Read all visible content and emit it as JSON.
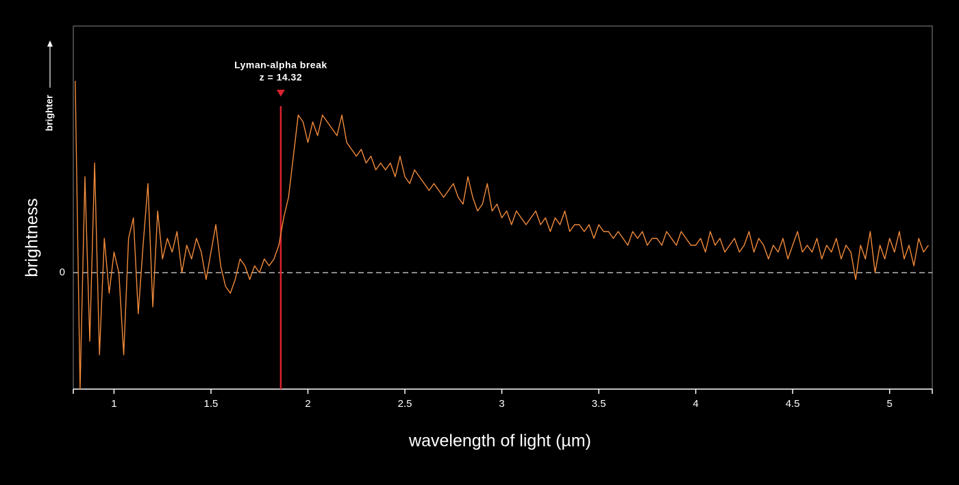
{
  "chart_data": {
    "type": "line",
    "xlabel": "wavelength of light (µm)",
    "ylabel": "brightness",
    "ylabel_note": "brighter",
    "annotation": {
      "x": 1.86,
      "lines": [
        "Lyman-alpha break",
        "z = 14.32"
      ],
      "color": "#d8232f"
    },
    "color": "#f28b3c",
    "xlim": [
      0.79,
      5.22
    ],
    "xticks": [
      1,
      1.5,
      2,
      2.5,
      3,
      3.5,
      4,
      4.5,
      5
    ],
    "ylim": [
      -17,
      36
    ],
    "yticks": [
      0
    ],
    "grid": true,
    "x": [
      0.8,
      0.825,
      0.85,
      0.875,
      0.9,
      0.925,
      0.95,
      0.975,
      1,
      1.025,
      1.05,
      1.075,
      1.1,
      1.125,
      1.15,
      1.175,
      1.2,
      1.225,
      1.25,
      1.275,
      1.3,
      1.325,
      1.35,
      1.375,
      1.4,
      1.425,
      1.45,
      1.475,
      1.5,
      1.525,
      1.55,
      1.575,
      1.6,
      1.625,
      1.65,
      1.675,
      1.7,
      1.725,
      1.75,
      1.775,
      1.8,
      1.825,
      1.85,
      1.875,
      1.9,
      1.925,
      1.95,
      1.975,
      2,
      2.025,
      2.05,
      2.075,
      2.1,
      2.125,
      2.15,
      2.175,
      2.2,
      2.225,
      2.25,
      2.275,
      2.3,
      2.325,
      2.35,
      2.375,
      2.4,
      2.425,
      2.45,
      2.475,
      2.5,
      2.525,
      2.55,
      2.575,
      2.6,
      2.625,
      2.65,
      2.675,
      2.7,
      2.725,
      2.75,
      2.775,
      2.8,
      2.825,
      2.85,
      2.875,
      2.9,
      2.925,
      2.95,
      2.975,
      3,
      3.025,
      3.05,
      3.075,
      3.1,
      3.125,
      3.15,
      3.175,
      3.2,
      3.225,
      3.25,
      3.275,
      3.3,
      3.325,
      3.35,
      3.375,
      3.4,
      3.425,
      3.45,
      3.475,
      3.5,
      3.525,
      3.55,
      3.575,
      3.6,
      3.625,
      3.65,
      3.675,
      3.7,
      3.725,
      3.75,
      3.775,
      3.8,
      3.825,
      3.85,
      3.875,
      3.9,
      3.925,
      3.95,
      3.975,
      4,
      4.025,
      4.05,
      4.075,
      4.1,
      4.125,
      4.15,
      4.175,
      4.2,
      4.225,
      4.25,
      4.275,
      4.3,
      4.325,
      4.35,
      4.375,
      4.4,
      4.425,
      4.45,
      4.475,
      4.5,
      4.525,
      4.55,
      4.575,
      4.6,
      4.625,
      4.65,
      4.675,
      4.7,
      4.725,
      4.75,
      4.775,
      4.8,
      4.825,
      4.85,
      4.875,
      4.9,
      4.925,
      4.95,
      4.975,
      5,
      5.025,
      5.05,
      5.075,
      5.1,
      5.125,
      5.15,
      5.175,
      5.2
    ],
    "values": [
      28,
      -17,
      14,
      -10,
      16,
      -12,
      5,
      -3,
      3,
      0,
      -12,
      5,
      8,
      -6,
      4,
      13,
      -5,
      9,
      2,
      5,
      3,
      6,
      0,
      4,
      2,
      5,
      3,
      -1,
      3,
      7,
      1,
      -2,
      -3,
      -1,
      2,
      1,
      -1,
      1,
      0,
      2,
      1,
      2,
      4,
      8,
      11,
      17,
      23,
      22,
      19,
      22,
      20,
      23,
      22,
      21,
      20,
      23,
      19,
      18,
      17,
      18,
      16,
      17,
      15,
      16,
      15,
      16,
      14,
      17,
      14,
      13,
      15,
      14,
      13,
      12,
      13,
      12,
      11,
      12,
      13,
      11,
      10,
      14,
      11,
      9,
      10,
      13,
      9,
      10,
      8,
      9,
      7,
      9,
      8,
      7,
      8,
      9,
      7,
      8,
      6,
      8,
      7,
      9,
      6,
      7,
      7,
      6,
      7,
      5,
      7,
      6,
      6,
      5,
      6,
      5,
      4,
      6,
      5,
      6,
      4,
      5,
      5,
      4,
      6,
      5,
      4,
      6,
      5,
      4,
      4,
      5,
      3,
      6,
      4,
      5,
      3,
      4,
      5,
      3,
      4,
      6,
      3,
      5,
      4,
      2,
      4,
      3,
      5,
      2,
      4,
      6,
      3,
      4,
      3,
      5,
      2,
      4,
      3,
      5,
      2,
      4,
      3,
      -1,
      4,
      2,
      6,
      0,
      4,
      2,
      5,
      3,
      6,
      2,
      4,
      1,
      5,
      3,
      4
    ]
  }
}
